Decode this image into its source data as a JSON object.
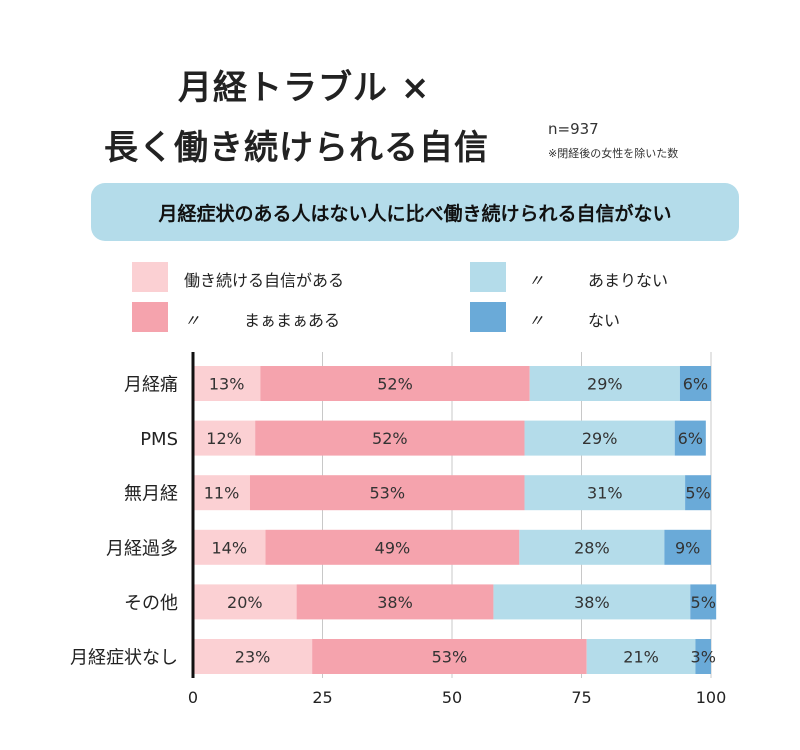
{
  "header": {
    "title_line1": "月経トラブル ×",
    "title_line2": "長く働き続けられる自信",
    "sample_size": "n=937",
    "note": "※閉経後の女性を除いた数"
  },
  "banner": {
    "text": "月経症状のある人はない人に比べ働き続けられる自信がない"
  },
  "legend": {
    "items": [
      {
        "label": "働き続ける自信がある",
        "ditto": "",
        "color": "#fbd0d3"
      },
      {
        "label": "まぁまぁある",
        "ditto": "〃",
        "color": "#f5a3ad"
      },
      {
        "label": "あまりない",
        "ditto": "〃",
        "color": "#b4dcea"
      },
      {
        "label": "ない",
        "ditto": "〃",
        "color": "#6aaad8"
      }
    ]
  },
  "chart_data": {
    "type": "bar",
    "orientation": "horizontal-stacked",
    "categories": [
      "月経痛",
      "PMS",
      "無月経",
      "月経過多",
      "その他",
      "月経症状なし"
    ],
    "series": [
      {
        "name": "働き続ける自信がある",
        "values": [
          13,
          12,
          11,
          14,
          20,
          23
        ],
        "labels": [
          "13%",
          "12%",
          "11%",
          "14%",
          "20%",
          "23%"
        ]
      },
      {
        "name": "まぁまぁある",
        "values": [
          52,
          52,
          53,
          49,
          38,
          53
        ],
        "labels": [
          "52%",
          "52%",
          "53%",
          "49%",
          "38%",
          "53%"
        ]
      },
      {
        "name": "あまりない",
        "values": [
          29,
          29,
          31,
          28,
          38,
          21
        ],
        "labels": [
          "29%",
          "29%",
          "31%",
          "28%",
          "38%",
          "21%"
        ]
      },
      {
        "name": "ない",
        "values": [
          6,
          6,
          5,
          9,
          5,
          3
        ],
        "labels": [
          "6%",
          "6%",
          "5%",
          "9%",
          "5%",
          "3%"
        ]
      }
    ],
    "colors": [
      "#fbd0d3",
      "#f5a3ad",
      "#b4dcea",
      "#6aaad8"
    ],
    "xlim": [
      0,
      100
    ],
    "xticks": [
      0,
      25,
      50,
      75,
      100
    ],
    "xtick_labels": [
      "0",
      "25",
      "50",
      "75",
      "100"
    ],
    "grid": true
  }
}
